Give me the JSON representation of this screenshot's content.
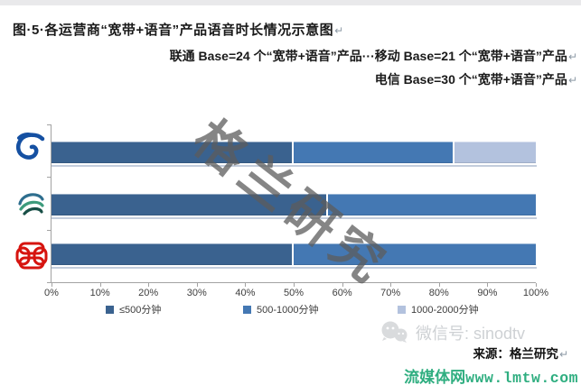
{
  "header": {
    "title": "图·5·各运营商“宽带+语音”产品语音时长情况示意图",
    "pilcrow": "↵",
    "note_line1": "联通 Base=24 个“宽带+语音”产品···移动 Base=21 个“宽带+语音”产品",
    "note_line2": "电信 Base=30 个“宽带+语音”产品"
  },
  "chart_data": {
    "type": "bar",
    "orientation": "horizontal",
    "stacked": true,
    "categories": [
      "中国电信",
      "中国移动",
      "中国联通"
    ],
    "series": [
      {
        "name": "≤500分钟",
        "color": "#3A628F",
        "values": [
          50.0,
          57.1,
          50.0
        ]
      },
      {
        "name": "500-1000分钟",
        "color": "#4478B3",
        "values": [
          33.3,
          42.9,
          50.0
        ]
      },
      {
        "name": "1000-2000分钟",
        "color": "#B3C2DE",
        "values": [
          16.7,
          0.0,
          0.0
        ]
      }
    ],
    "x_ticks": [
      "0%",
      "10%",
      "20%",
      "30%",
      "40%",
      "50%",
      "60%",
      "70%",
      "80%",
      "90%",
      "100%"
    ],
    "xlim": [
      0,
      100
    ],
    "grid": false,
    "legend_position": "bottom",
    "axis_color": "#a3a3a3"
  },
  "watermark": {
    "diagonal_text": "格兰研究",
    "wechat_text": "微信号: sinodtv"
  },
  "footer": {
    "source": "来源：格兰研究",
    "site_name": "流媒体网",
    "site_url": "www.lmtw.com"
  }
}
